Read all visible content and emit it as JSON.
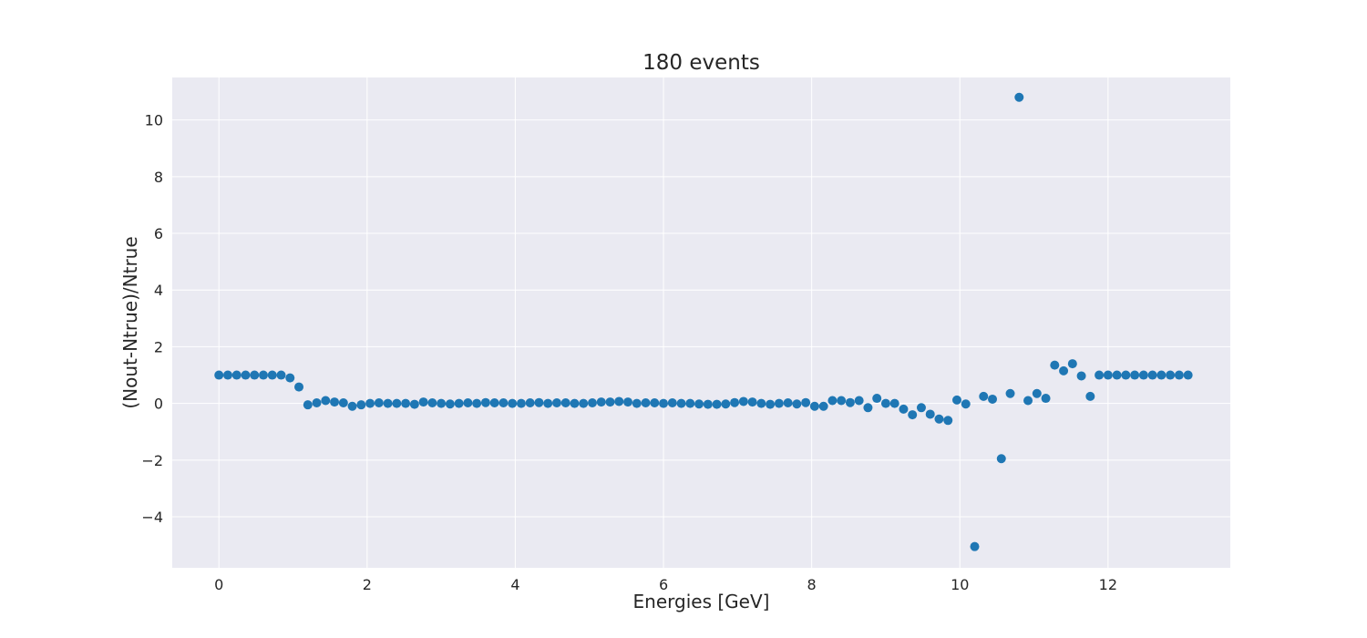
{
  "chart_data": {
    "type": "scatter",
    "title": "180 events",
    "xlabel": "Energies [GeV]",
    "ylabel": "(Nout-Ntrue)/Ntrue",
    "xlim": [
      -0.63,
      13.65
    ],
    "ylim": [
      -5.8,
      11.5
    ],
    "x_ticks": [
      {
        "value": 0,
        "label": "0"
      },
      {
        "value": 2,
        "label": "2"
      },
      {
        "value": 4,
        "label": "4"
      },
      {
        "value": 6,
        "label": "6"
      },
      {
        "value": 8,
        "label": "8"
      },
      {
        "value": 10,
        "label": "10"
      },
      {
        "value": 12,
        "label": "12"
      }
    ],
    "y_ticks": [
      {
        "value": -4,
        "label": "−4"
      },
      {
        "value": -2,
        "label": "−2"
      },
      {
        "value": 0,
        "label": "0"
      },
      {
        "value": 2,
        "label": "2"
      },
      {
        "value": 4,
        "label": "4"
      },
      {
        "value": 6,
        "label": "6"
      },
      {
        "value": 8,
        "label": "8"
      },
      {
        "value": 10,
        "label": "10"
      }
    ],
    "grid": true,
    "legend": false,
    "colors": {
      "marker": "#1f77b4",
      "plot_background": "#eaeaf2",
      "grid": "#ffffff",
      "text": "#262626"
    },
    "x_step": 0.12,
    "y": [
      1.0,
      1.0,
      1.0,
      1.0,
      1.0,
      1.0,
      1.0,
      1.0,
      0.9,
      0.58,
      -0.05,
      0.02,
      0.1,
      0.05,
      0.02,
      -0.1,
      -0.05,
      0.0,
      0.02,
      0.0,
      0.0,
      0.0,
      -0.03,
      0.05,
      0.02,
      0.0,
      -0.02,
      0.0,
      0.02,
      0.0,
      0.03,
      0.02,
      0.02,
      0.0,
      0.0,
      0.02,
      0.03,
      0.0,
      0.02,
      0.02,
      0.0,
      0.0,
      0.02,
      0.05,
      0.05,
      0.07,
      0.05,
      0.0,
      0.02,
      0.02,
      0.0,
      0.02,
      0.0,
      0.0,
      -0.02,
      -0.03,
      -0.03,
      -0.02,
      0.03,
      0.07,
      0.05,
      0.0,
      -0.03,
      0.0,
      0.02,
      -0.02,
      0.03,
      -0.1,
      -0.1,
      0.1,
      0.1,
      0.03,
      0.1,
      -0.15,
      0.18,
      0.0,
      0.0,
      -0.2,
      -0.4,
      -0.15,
      -0.38,
      -0.55,
      -0.6,
      0.12,
      -0.02,
      -5.05,
      0.25,
      0.15,
      -1.95,
      0.35,
      10.8,
      0.1,
      0.35,
      0.18,
      1.35,
      1.15,
      1.4,
      0.97,
      0.25,
      1.0,
      1.0,
      1.0,
      1.0,
      1.0,
      1.0,
      1.0,
      1.0,
      1.0,
      1.0,
      1.0
    ]
  }
}
